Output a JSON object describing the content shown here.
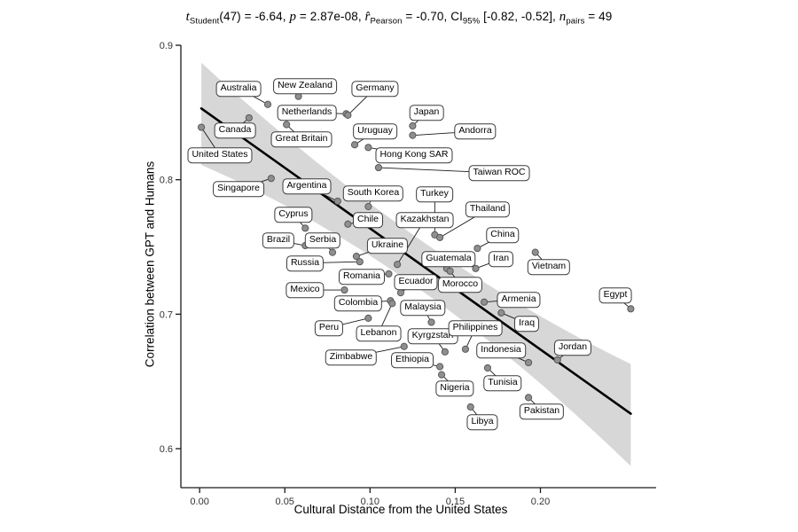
{
  "title_segments": [
    {
      "text": "t",
      "italic": true
    },
    {
      "text": "Student",
      "sub": true
    },
    {
      "text": "(47) = -6.64, "
    },
    {
      "text": "p",
      "italic": true
    },
    {
      "text": " = 2.87e-08, "
    },
    {
      "text": "r̂",
      "italic": true
    },
    {
      "text": "Pearson",
      "sub": true
    },
    {
      "text": " = -0.70, CI"
    },
    {
      "text": "95%",
      "sub": true
    },
    {
      "text": " [-0.82, -0.52], "
    },
    {
      "text": "n",
      "italic": true
    },
    {
      "text": "pairs",
      "sub": true
    },
    {
      "text": " = 49"
    }
  ],
  "chart_data": {
    "type": "scatter",
    "title": "t Student(47) = -6.64, p = 2.87e-08, r Pearson = -0.70, CI95% [-0.82, -0.52], n pairs = 49",
    "xlabel": "Cultural Distance from the United States",
    "ylabel": "Correlation between GPT and Humans",
    "xlim": [
      -0.011,
      0.2705
    ],
    "ylim": [
      0.571,
      0.902
    ],
    "x_ticks": [
      0.0,
      0.05,
      0.1,
      0.15,
      0.2
    ],
    "x_tick_labels": [
      "0.00",
      "0.05",
      "0.10",
      "0.15",
      "0.20"
    ],
    "y_ticks": [
      0.6,
      0.7,
      0.8,
      0.9
    ],
    "y_tick_labels": [
      "0.6",
      "0.7",
      "0.8",
      "0.9"
    ],
    "grid": false,
    "legend": "none",
    "regression": {
      "x0": 0.001,
      "y0": 0.853,
      "x1": 0.253,
      "y1": 0.626
    },
    "ci_band": {
      "upper_offsets": [
        0.034,
        0.018,
        0.037
      ],
      "lower_offsets": [
        0.042,
        0.019,
        0.039
      ]
    },
    "colors": {
      "band": "#d7d7d7",
      "line": "#000000",
      "dot_fill": "#8f8f8f",
      "dot_stroke": "#5a5a5a",
      "axis": "#1a1a1a",
      "connector": "#1a1a1a",
      "label_border": "#3a3a3a"
    },
    "points": [
      {
        "name": "United States",
        "x": 0.001,
        "y": 0.839,
        "lx": 0.012,
        "ly": 0.818
      },
      {
        "name": "Canada",
        "x": 0.029,
        "y": 0.846,
        "lx": 0.021,
        "ly": 0.837
      },
      {
        "name": "Australia",
        "x": 0.04,
        "y": 0.856,
        "lx": 0.023,
        "ly": 0.868
      },
      {
        "name": "New Zealand",
        "x": 0.058,
        "y": 0.862,
        "lx": 0.062,
        "ly": 0.87
      },
      {
        "name": "Netherlands",
        "x": 0.086,
        "y": 0.849,
        "lx": 0.063,
        "ly": 0.85
      },
      {
        "name": "Germany",
        "x": 0.087,
        "y": 0.848,
        "lx": 0.103,
        "ly": 0.868
      },
      {
        "name": "Great Britain",
        "x": 0.051,
        "y": 0.841,
        "lx": 0.06,
        "ly": 0.83
      },
      {
        "name": "Japan",
        "x": 0.125,
        "y": 0.84,
        "lx": 0.133,
        "ly": 0.85
      },
      {
        "name": "Uruguay",
        "x": 0.091,
        "y": 0.826,
        "lx": 0.103,
        "ly": 0.836
      },
      {
        "name": "Andorra",
        "x": 0.125,
        "y": 0.833,
        "lx": 0.162,
        "ly": 0.836
      },
      {
        "name": "Hong Kong SAR",
        "x": 0.099,
        "y": 0.824,
        "lx": 0.126,
        "ly": 0.818
      },
      {
        "name": "Taiwan ROC",
        "x": 0.105,
        "y": 0.809,
        "lx": 0.176,
        "ly": 0.805
      },
      {
        "name": "Singapore",
        "x": 0.042,
        "y": 0.801,
        "lx": 0.023,
        "ly": 0.793
      },
      {
        "name": "Argentina",
        "x": 0.081,
        "y": 0.784,
        "lx": 0.063,
        "ly": 0.795
      },
      {
        "name": "South Korea",
        "x": 0.099,
        "y": 0.78,
        "lx": 0.102,
        "ly": 0.79
      },
      {
        "name": "Turkey",
        "x": 0.138,
        "y": 0.759,
        "lx": 0.138,
        "ly": 0.789
      },
      {
        "name": "Cyprus",
        "x": 0.062,
        "y": 0.764,
        "lx": 0.055,
        "ly": 0.774
      },
      {
        "name": "Chile",
        "x": 0.087,
        "y": 0.767,
        "lx": 0.099,
        "ly": 0.77
      },
      {
        "name": "Kazakhstan",
        "x": 0.116,
        "y": 0.737,
        "lx": 0.132,
        "ly": 0.77
      },
      {
        "name": "Thailand",
        "x": 0.141,
        "y": 0.757,
        "lx": 0.169,
        "ly": 0.778
      },
      {
        "name": "Brazil",
        "x": 0.062,
        "y": 0.751,
        "lx": 0.046,
        "ly": 0.755
      },
      {
        "name": "Serbia",
        "x": 0.078,
        "y": 0.746,
        "lx": 0.072,
        "ly": 0.755
      },
      {
        "name": "Ukraine",
        "x": 0.092,
        "y": 0.743,
        "lx": 0.11,
        "ly": 0.751
      },
      {
        "name": "China",
        "x": 0.163,
        "y": 0.749,
        "lx": 0.178,
        "ly": 0.759
      },
      {
        "name": "Russia",
        "x": 0.094,
        "y": 0.739,
        "lx": 0.062,
        "ly": 0.738
      },
      {
        "name": "Guatemala",
        "x": 0.145,
        "y": 0.734,
        "lx": 0.146,
        "ly": 0.741
      },
      {
        "name": "Iran",
        "x": 0.162,
        "y": 0.734,
        "lx": 0.177,
        "ly": 0.741
      },
      {
        "name": "Vietnam",
        "x": 0.197,
        "y": 0.746,
        "lx": 0.205,
        "ly": 0.735
      },
      {
        "name": "Romania",
        "x": 0.111,
        "y": 0.73,
        "lx": 0.095,
        "ly": 0.728
      },
      {
        "name": "Ecuador",
        "x": 0.118,
        "y": 0.716,
        "lx": 0.127,
        "ly": 0.724
      },
      {
        "name": "Morocco",
        "x": 0.147,
        "y": 0.732,
        "lx": 0.153,
        "ly": 0.722
      },
      {
        "name": "Mexico",
        "x": 0.085,
        "y": 0.718,
        "lx": 0.062,
        "ly": 0.718
      },
      {
        "name": "Egypt",
        "x": 0.253,
        "y": 0.704,
        "lx": 0.244,
        "ly": 0.714
      },
      {
        "name": "Colombia",
        "x": 0.112,
        "y": 0.71,
        "lx": 0.093,
        "ly": 0.708
      },
      {
        "name": "Malaysia",
        "x": 0.136,
        "y": 0.694,
        "lx": 0.131,
        "ly": 0.705
      },
      {
        "name": "Armenia",
        "x": 0.167,
        "y": 0.709,
        "lx": 0.187,
        "ly": 0.711
      },
      {
        "name": "Peru",
        "x": 0.099,
        "y": 0.697,
        "lx": 0.076,
        "ly": 0.69
      },
      {
        "name": "Lebanon",
        "x": 0.113,
        "y": 0.708,
        "lx": 0.105,
        "ly": 0.686
      },
      {
        "name": "Kyrgzstan",
        "x": 0.144,
        "y": 0.672,
        "lx": 0.137,
        "ly": 0.684
      },
      {
        "name": "Philippines",
        "x": 0.156,
        "y": 0.674,
        "lx": 0.162,
        "ly": 0.69
      },
      {
        "name": "Iraq",
        "x": 0.177,
        "y": 0.701,
        "lx": 0.192,
        "ly": 0.693
      },
      {
        "name": "Zimbabwe",
        "x": 0.12,
        "y": 0.676,
        "lx": 0.089,
        "ly": 0.668
      },
      {
        "name": "Ethiopia",
        "x": 0.141,
        "y": 0.661,
        "lx": 0.125,
        "ly": 0.666
      },
      {
        "name": "Indonesia",
        "x": 0.193,
        "y": 0.664,
        "lx": 0.177,
        "ly": 0.673
      },
      {
        "name": "Jordan",
        "x": 0.21,
        "y": 0.666,
        "lx": 0.219,
        "ly": 0.675
      },
      {
        "name": "Nigeria",
        "x": 0.142,
        "y": 0.655,
        "lx": 0.15,
        "ly": 0.645
      },
      {
        "name": "Tunisia",
        "x": 0.169,
        "y": 0.66,
        "lx": 0.178,
        "ly": 0.649
      },
      {
        "name": "Libya",
        "x": 0.159,
        "y": 0.631,
        "lx": 0.166,
        "ly": 0.62
      },
      {
        "name": "Pakistan",
        "x": 0.193,
        "y": 0.638,
        "lx": 0.201,
        "ly": 0.628
      }
    ]
  }
}
